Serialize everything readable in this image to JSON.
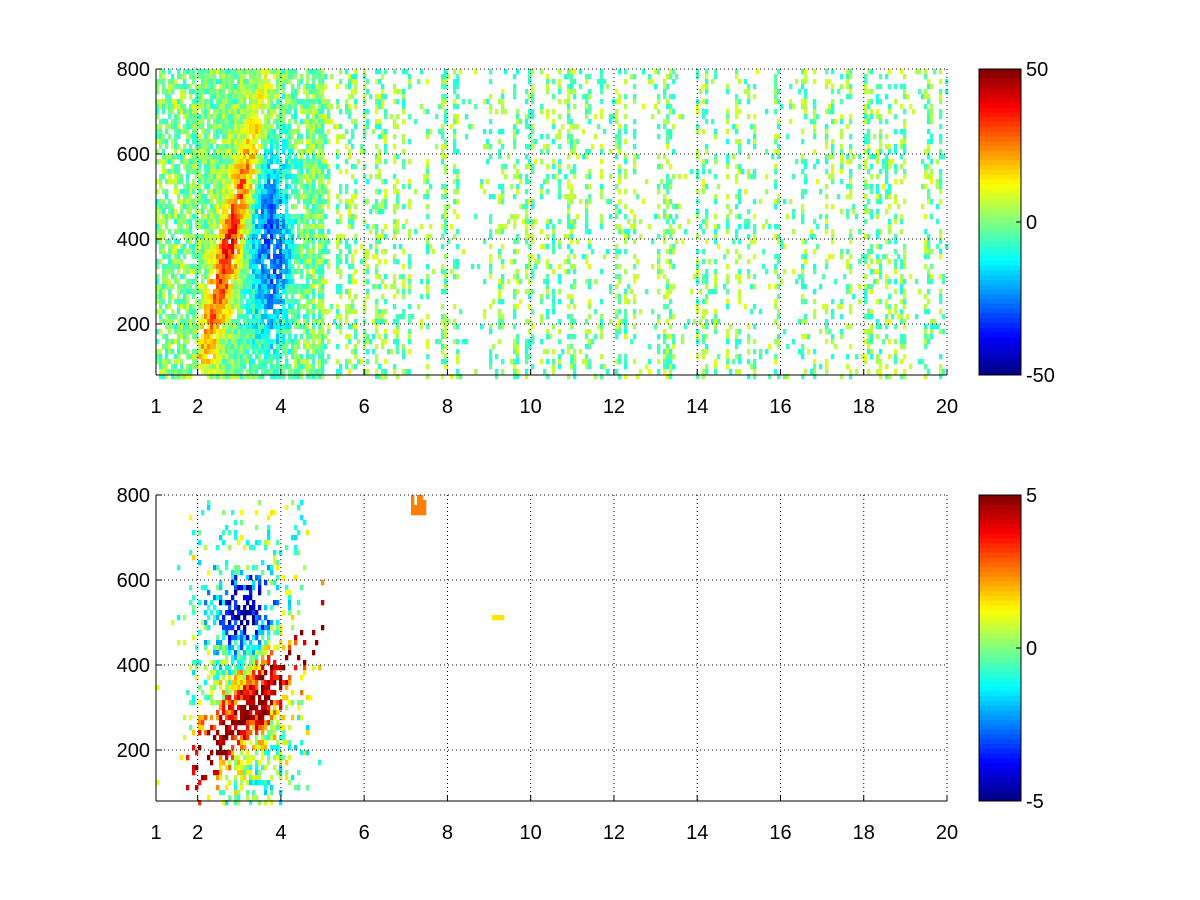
{
  "chart_data": [
    {
      "type": "heatmap",
      "title": "",
      "xlabel": "",
      "ylabel": "",
      "xlim": [
        1,
        20
      ],
      "ylim": [
        80,
        800
      ],
      "xticks": [
        1,
        2,
        4,
        6,
        8,
        10,
        12,
        14,
        16,
        18,
        20
      ],
      "xtick_labels": [
        "1",
        "2",
        "4",
        "6",
        "8",
        "10",
        "12",
        "14",
        "16",
        "18",
        "20"
      ],
      "yticks": [
        200,
        400,
        600,
        800
      ],
      "ytick_labels": [
        "200",
        "400",
        "600",
        "800"
      ],
      "grid": true,
      "colormap": "jet",
      "clim": [
        -50,
        50
      ],
      "colorbar_ticks": [
        -50,
        0,
        50
      ],
      "colorbar_labels": [
        "-50",
        "0",
        "50"
      ],
      "features": [
        {
          "region": "dense broadband activity",
          "x_range": [
            1,
            5
          ],
          "y_range": [
            80,
            800
          ]
        },
        {
          "region": "positive ridge (yellow to red)",
          "x_range": [
            2,
            3.5
          ],
          "y_range": [
            150,
            650
          ],
          "value_range": [
            15,
            40
          ]
        },
        {
          "region": "negative ridge (cyan to blue)",
          "x_range": [
            3.3,
            4.2
          ],
          "y_range": [
            180,
            650
          ],
          "value_range": [
            -30,
            -10
          ]
        },
        {
          "region": "sparse near-zero speckle",
          "x_range": [
            4,
            20
          ],
          "y_range": [
            80,
            800
          ],
          "value_range": [
            -10,
            10
          ]
        }
      ]
    },
    {
      "type": "heatmap",
      "title": "",
      "xlabel": "",
      "ylabel": "",
      "xlim": [
        1,
        20
      ],
      "ylim": [
        80,
        800
      ],
      "xticks": [
        1,
        2,
        4,
        6,
        8,
        10,
        12,
        14,
        16,
        18,
        20
      ],
      "xtick_labels": [
        "1",
        "2",
        "4",
        "6",
        "8",
        "10",
        "12",
        "14",
        "16",
        "18",
        "20"
      ],
      "yticks": [
        200,
        400,
        600,
        800
      ],
      "ytick_labels": [
        "200",
        "400",
        "600",
        "800"
      ],
      "grid": true,
      "colormap": "jet",
      "clim": [
        -5,
        5
      ],
      "colorbar_ticks": [
        -5,
        0,
        5
      ],
      "colorbar_labels": [
        "-5",
        "0",
        "5"
      ],
      "features": [
        {
          "region": "positive band (red)",
          "x_range": [
            2,
            4.5
          ],
          "y_range": [
            150,
            450
          ],
          "value_range": [
            2,
            5
          ]
        },
        {
          "region": "negative cluster (blue)",
          "x_range": [
            2.5,
            3.9
          ],
          "y_range": [
            450,
            650
          ],
          "value_range": [
            -5,
            -2
          ]
        },
        {
          "region": "isolated positive pixel",
          "x_range": [
            7.2,
            7.4
          ],
          "y_range": [
            760,
            790
          ],
          "value_range": [
            2,
            3
          ]
        }
      ]
    }
  ]
}
